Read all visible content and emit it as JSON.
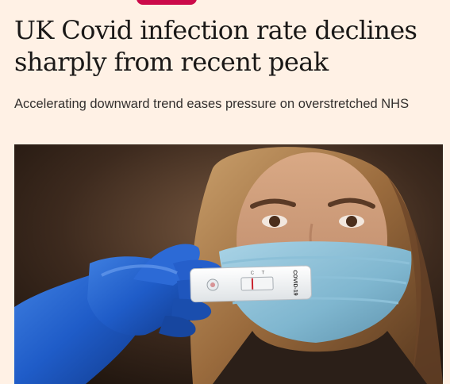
{
  "article": {
    "section_pill_color": "#cc0a4a",
    "headline": "UK Covid infection rate declines sharply from recent peak",
    "standfirst": "Accelerating downward trend eases pressure on overstretched NHS",
    "image": {
      "subject": "photo-woman-mask-test",
      "test_label": "COVID-19",
      "test_markings": [
        "C",
        "T"
      ]
    }
  },
  "colors": {
    "background": "#fff1e5",
    "headline": "#1a1817",
    "standfirst": "#33302e",
    "accent": "#cc0a4a"
  }
}
